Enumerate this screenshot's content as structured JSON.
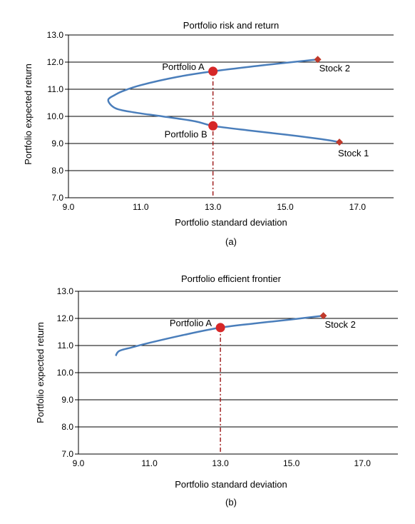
{
  "chart_data": [
    {
      "type": "line",
      "title": "Portfolio risk and return",
      "xlabel": "Portfolio standard deviation",
      "ylabel": "Portfolio expected return",
      "caption": "(a)",
      "xlim": [
        9.0,
        18.0
      ],
      "ylim": [
        7.0,
        13.0
      ],
      "xticks": [
        "9.0",
        "11.0",
        "13.0",
        "15.0",
        "17.0"
      ],
      "yticks": [
        "7.0",
        "8.0",
        "9.0",
        "10.0",
        "11.0",
        "12.0",
        "13.0"
      ],
      "grid": "horizontal",
      "series": [
        {
          "color": "#4a7ebb",
          "points": [
            [
              15.9,
              12.1
            ],
            [
              14.5,
              11.9
            ],
            [
              13.0,
              11.66
            ],
            [
              12.0,
              11.45
            ],
            [
              11.0,
              11.15
            ],
            [
              10.5,
              10.93
            ],
            [
              10.3,
              10.8
            ],
            [
              10.1,
              10.6
            ],
            [
              10.3,
              10.3
            ],
            [
              10.8,
              10.15
            ],
            [
              11.6,
              10.0
            ],
            [
              12.5,
              9.82
            ],
            [
              13.0,
              9.65
            ],
            [
              14.0,
              9.48
            ],
            [
              15.0,
              9.33
            ],
            [
              16.0,
              9.16
            ],
            [
              16.5,
              9.05
            ]
          ]
        }
      ],
      "markers": [
        {
          "label": "Stock 2",
          "x": 15.9,
          "y": 12.1,
          "shape": "diamond",
          "color": "#c0392b"
        },
        {
          "label": "Stock 1",
          "x": 16.5,
          "y": 9.05,
          "shape": "diamond",
          "color": "#c0392b"
        },
        {
          "label": "Portfolio A",
          "x": 13.0,
          "y": 11.66,
          "shape": "circle",
          "color": "#d62728"
        },
        {
          "label": "Portfolio B",
          "x": 13.0,
          "y": 9.65,
          "shape": "circle",
          "color": "#d62728"
        }
      ],
      "reference_line": {
        "x": 13.0,
        "style": "dash-dot",
        "color": "#a02020"
      }
    },
    {
      "type": "line",
      "title": "Portfolio efficient frontier",
      "xlabel": "Portfolio standard deviation",
      "ylabel": "Portfolio expected return",
      "caption": "(b)",
      "xlim": [
        9.0,
        18.0
      ],
      "ylim": [
        7.0,
        13.0
      ],
      "xticks": [
        "9.0",
        "11.0",
        "13.0",
        "15.0",
        "17.0"
      ],
      "yticks": [
        "7.0",
        "8.0",
        "9.0",
        "10.0",
        "11.0",
        "12.0",
        "13.0"
      ],
      "grid": "horizontal",
      "series": [
        {
          "color": "#4a7ebb",
          "points": [
            [
              10.05,
              10.62
            ],
            [
              10.15,
              10.8
            ],
            [
              10.5,
              10.93
            ],
            [
              11.0,
              11.1
            ],
            [
              12.0,
              11.4
            ],
            [
              13.0,
              11.66
            ],
            [
              14.0,
              11.82
            ],
            [
              15.0,
              11.96
            ],
            [
              15.9,
              12.1
            ]
          ]
        }
      ],
      "markers": [
        {
          "label": "Stock 2",
          "x": 15.9,
          "y": 12.1,
          "shape": "diamond",
          "color": "#c0392b"
        },
        {
          "label": "Portfolio A",
          "x": 13.0,
          "y": 11.66,
          "shape": "circle",
          "color": "#d62728"
        }
      ],
      "reference_line": {
        "x": 13.0,
        "style": "dash-dot",
        "color": "#a02020"
      }
    }
  ]
}
